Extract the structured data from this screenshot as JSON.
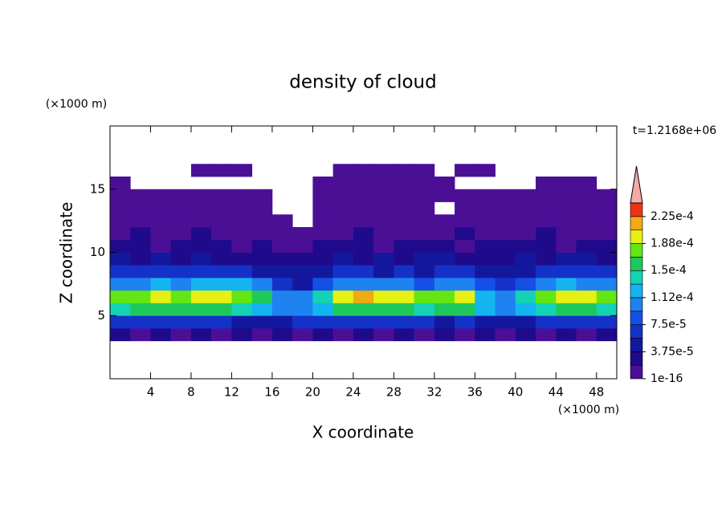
{
  "chart_data": {
    "type": "contour",
    "title": "density of cloud",
    "x_label": "X coordinate",
    "y_label": "Z coordinate",
    "x_unit": "(×1000 m)",
    "y_unit": "(×1000 m)",
    "annotation": "t=1.2168e+06",
    "xlim": [
      0,
      50
    ],
    "ylim": [
      0,
      20
    ],
    "xticks": [
      4,
      8,
      12,
      16,
      20,
      24,
      28,
      32,
      36,
      40,
      44,
      48
    ],
    "yticks": [
      5,
      10,
      15
    ],
    "x": [
      1,
      3,
      5,
      7,
      9,
      11,
      13,
      15,
      17,
      19,
      21,
      23,
      25,
      27,
      29,
      31,
      33,
      35,
      37,
      39,
      41,
      43,
      45,
      47,
      49
    ],
    "y": [
      3.5,
      4.5,
      5.5,
      6.5,
      7.5,
      8.5,
      9.5,
      10.5,
      11.5,
      12.5,
      13.5,
      14.5,
      15.5,
      16.5
    ],
    "values": [
      [
        2e-05,
        1e-05,
        2e-05,
        1e-05,
        2e-05,
        1e-05,
        2e-05,
        1e-05,
        2e-05,
        1e-05,
        2e-05,
        1e-05,
        2e-05,
        1e-05,
        2e-05,
        1e-05,
        2e-05,
        1e-05,
        2e-05,
        1e-05,
        2e-05,
        1e-05,
        2e-05,
        1e-05,
        2e-05
      ],
      [
        6e-05,
        7e-05,
        6e-05,
        7e-05,
        6e-05,
        6e-05,
        5e-05,
        4e-05,
        5e-05,
        6e-05,
        6e-05,
        7e-05,
        6e-05,
        7e-05,
        6e-05,
        6e-05,
        5e-05,
        6e-05,
        4e-05,
        4e-05,
        5e-05,
        6e-05,
        6e-05,
        7e-05,
        6e-05
      ],
      [
        0.00014,
        0.00015,
        0.00016,
        0.00015,
        0.00016,
        0.00015,
        0.00014,
        0.00013,
        0.00011,
        0.00011,
        0.00013,
        0.00015,
        0.00016,
        0.00016,
        0.00015,
        0.00014,
        0.00015,
        0.00015,
        0.00012,
        0.00011,
        0.00012,
        0.00014,
        0.00016,
        0.00015,
        0.00014
      ],
      [
        0.00017,
        0.00018,
        0.00019,
        0.00018,
        0.00019,
        0.0002,
        0.00018,
        0.00016,
        0.00011,
        0.0001,
        0.00014,
        0.00019,
        0.00021,
        0.0002,
        0.00019,
        0.00017,
        0.00018,
        0.00019,
        0.00013,
        0.00011,
        0.00014,
        0.00017,
        0.0002,
        0.00019,
        0.00017
      ],
      [
        0.0001,
        0.00011,
        0.00012,
        0.00011,
        0.00012,
        0.00013,
        0.00012,
        0.0001,
        6e-05,
        5e-05,
        8e-05,
        0.0001,
        0.00011,
        0.00011,
        0.0001,
        9e-05,
        0.0001,
        0.00011,
        8e-05,
        7e-05,
        8e-05,
        0.0001,
        0.00012,
        0.00011,
        0.0001
      ],
      [
        6e-05,
        6e-05,
        7e-05,
        6e-05,
        7e-05,
        7e-05,
        6e-05,
        5e-05,
        4e-05,
        4e-05,
        5e-05,
        6e-05,
        6e-05,
        5e-05,
        6e-05,
        5e-05,
        6e-05,
        6e-05,
        5e-05,
        5e-05,
        5e-05,
        6e-05,
        7e-05,
        7e-05,
        6e-05
      ],
      [
        4e-05,
        3e-05,
        4e-05,
        3e-05,
        4e-05,
        3e-05,
        3e-05,
        3e-05,
        2e-05,
        2e-05,
        3e-05,
        4e-05,
        3e-05,
        4e-05,
        3e-05,
        4e-05,
        4e-05,
        3e-05,
        3e-05,
        3e-05,
        4e-05,
        3e-05,
        4e-05,
        4e-05,
        3e-05
      ],
      [
        2e-05,
        2e-05,
        1e-05,
        2e-05,
        2e-05,
        2e-05,
        1e-05,
        2e-05,
        1e-05,
        1e-05,
        2e-05,
        2e-05,
        2e-05,
        1e-05,
        2e-05,
        2e-05,
        2e-05,
        1e-05,
        2e-05,
        2e-05,
        2e-05,
        2e-05,
        1e-05,
        2e-05,
        2e-05
      ],
      [
        1.5e-05,
        2e-05,
        1.5e-05,
        1.5e-05,
        2e-05,
        1.5e-05,
        1.5e-05,
        1.5e-05,
        1e-05,
        1e-05,
        1.5e-05,
        1.5e-05,
        2e-05,
        1.5e-05,
        1.5e-05,
        1.5e-05,
        1.5e-05,
        2e-05,
        1.5e-05,
        1.5e-05,
        1.5e-05,
        2e-05,
        1.5e-05,
        1.5e-05,
        1.5e-05
      ],
      [
        1e-05,
        1e-05,
        1e-05,
        1e-05,
        1e-05,
        1e-05,
        1e-05,
        1e-05,
        1e-05,
        null,
        1e-05,
        1e-05,
        1e-05,
        1e-05,
        1e-05,
        1e-05,
        1e-05,
        1e-05,
        1e-05,
        1e-05,
        1e-05,
        1e-05,
        1e-05,
        1e-05,
        1e-05
      ],
      [
        5e-06,
        5e-06,
        5e-06,
        5e-06,
        5e-06,
        5e-06,
        5e-06,
        5e-06,
        null,
        null,
        5e-06,
        5e-06,
        5e-06,
        5e-06,
        5e-06,
        5e-06,
        null,
        5e-06,
        5e-06,
        5e-06,
        5e-06,
        5e-06,
        5e-06,
        5e-06,
        5e-06
      ],
      [
        3e-06,
        3e-06,
        3e-06,
        3e-06,
        3e-06,
        3e-06,
        3e-06,
        3e-06,
        null,
        null,
        3e-06,
        3e-06,
        3e-06,
        3e-06,
        3e-06,
        3e-06,
        3e-06,
        3e-06,
        3e-06,
        3e-06,
        3e-06,
        3e-06,
        3e-06,
        3e-06,
        3e-06
      ],
      [
        3e-06,
        null,
        null,
        null,
        null,
        null,
        null,
        null,
        null,
        null,
        3e-06,
        3e-06,
        3e-06,
        3e-06,
        3e-06,
        3e-06,
        3e-06,
        null,
        null,
        null,
        null,
        3e-06,
        3e-06,
        3e-06,
        null
      ],
      [
        null,
        null,
        null,
        null,
        3e-06,
        3e-06,
        3e-06,
        null,
        null,
        null,
        null,
        3e-06,
        3e-06,
        3e-06,
        3e-06,
        3e-06,
        null,
        3e-06,
        3e-06,
        null,
        null,
        null,
        null,
        null,
        null
      ]
    ],
    "colorbar": {
      "levels": [
        1e-16,
        1.875e-05,
        3.75e-05,
        5.625e-05,
        7.5e-05,
        9.375e-05,
        0.0001125,
        0.00013125,
        0.00015,
        0.00016875,
        0.0001875,
        0.00020625,
        0.000225,
        0.00024375
      ],
      "colors": [
        "#4b0f96",
        "#200a8c",
        "#14189e",
        "#1432c8",
        "#1450e6",
        "#1e82f0",
        "#14b4f0",
        "#14d2b4",
        "#1ec85a",
        "#64e614",
        "#e6f014",
        "#f0aa14",
        "#f03214"
      ],
      "extend_color": "#f4a9a9",
      "ticks": [
        {
          "value": 1e-16,
          "label": "1e-16"
        },
        {
          "value": 3.75e-05,
          "label": "3.75e-5"
        },
        {
          "value": 7.5e-05,
          "label": "7.5e-5"
        },
        {
          "value": 0.0001125,
          "label": "1.12e-4"
        },
        {
          "value": 0.00015,
          "label": "1.5e-4"
        },
        {
          "value": 0.0001875,
          "label": "1.88e-4"
        },
        {
          "value": 0.000225,
          "label": "2.25e-4"
        }
      ]
    }
  }
}
